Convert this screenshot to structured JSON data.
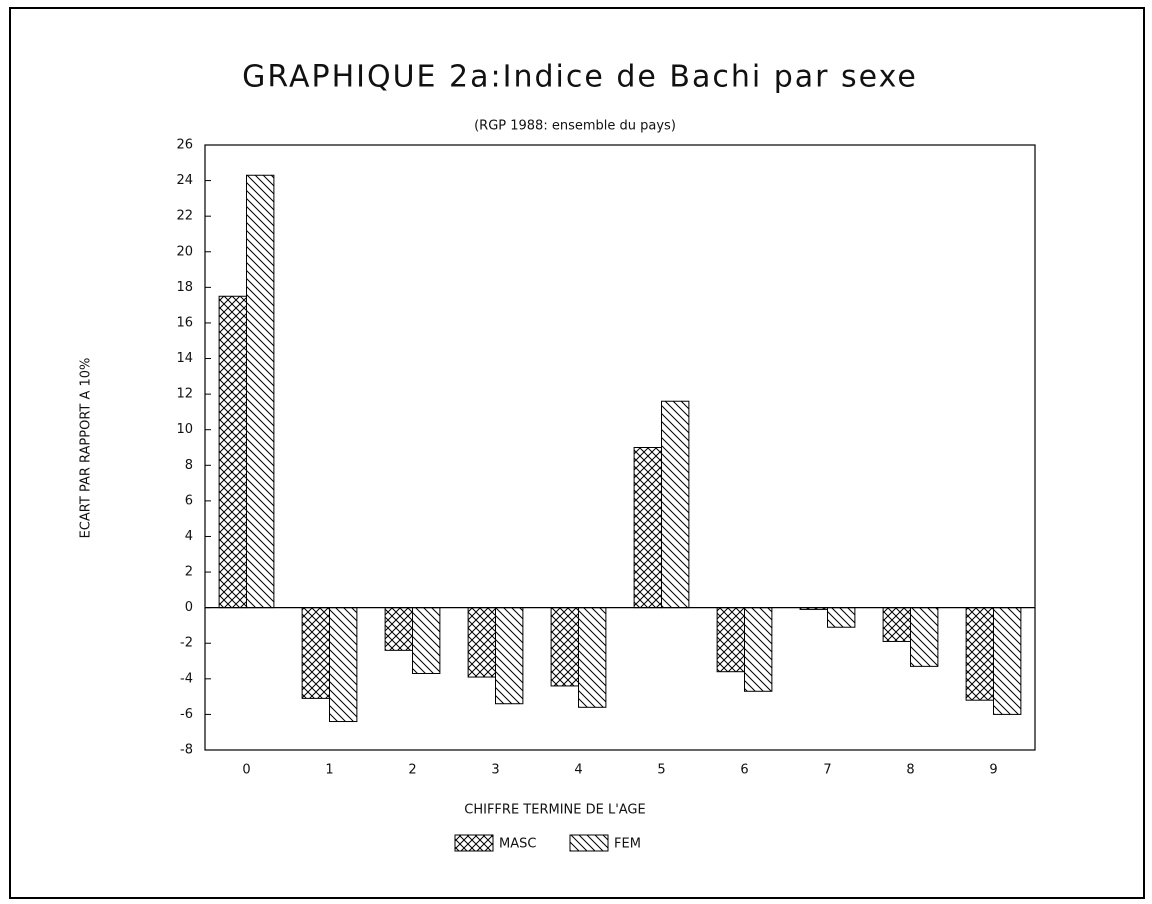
{
  "chart_data": {
    "type": "bar",
    "title": "GRAPHIQUE 2a:Indice de Bachi par sexe",
    "subtitle": "(RGP 1988: ensemble du pays)",
    "x_label": "CHIFFRE TERMINE DE L'AGE",
    "y_label": "ECART PAR RAPPORT A 10%",
    "categories": [
      "0",
      "1",
      "2",
      "3",
      "4",
      "5",
      "6",
      "7",
      "8",
      "9"
    ],
    "series": [
      {
        "name": "MASC",
        "color": "#000000",
        "pattern": "crosshatch",
        "values": [
          17.5,
          -5.1,
          -2.4,
          -3.9,
          -4.4,
          9.0,
          -3.6,
          -0.1,
          -1.9,
          -5.2
        ]
      },
      {
        "name": "FEM",
        "color": "#000000",
        "pattern": "diagonal",
        "values": [
          24.3,
          -6.4,
          -3.7,
          -5.4,
          -5.6,
          11.6,
          -4.7,
          -1.1,
          -3.3,
          -6.0
        ]
      }
    ],
    "ylim": [
      -8,
      26
    ],
    "yticks": [
      -8,
      -6,
      -4,
      -2,
      0,
      2,
      4,
      6,
      8,
      10,
      12,
      14,
      16,
      18,
      20,
      22,
      24,
      26
    ],
    "grid": false,
    "legend": "bottom"
  }
}
